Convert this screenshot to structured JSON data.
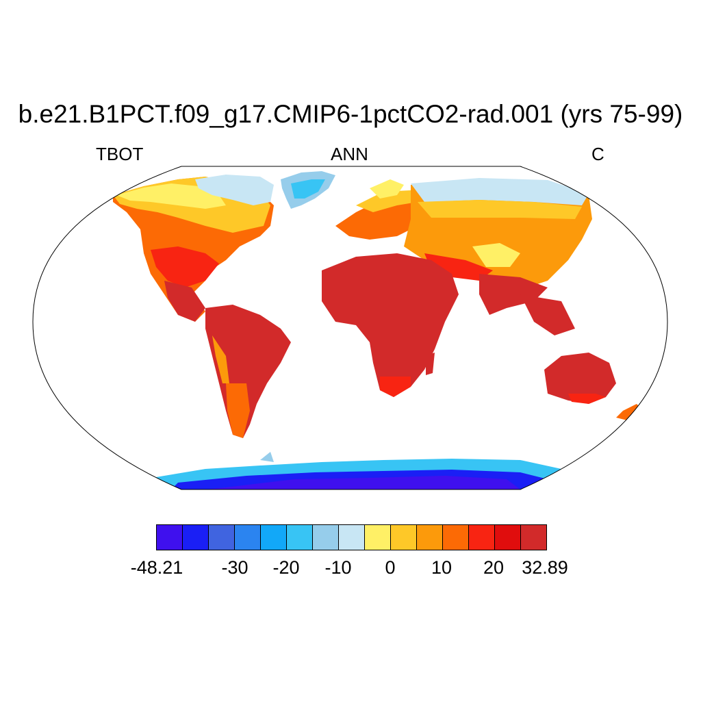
{
  "title": "b.e21.B1PCT.f09_g17.CMIP6-1pctCO2-rad.001 (yrs 75-99)",
  "left_label": "TBOT",
  "center_label": "ANN",
  "right_label": "C",
  "colorbar": {
    "colors": [
      "#3f10ee",
      "#1a1ff5",
      "#4064e0",
      "#2b84f0",
      "#12a8f8",
      "#38c4f4",
      "#96cdeb",
      "#c8e6f4",
      "#fff066",
      "#fec828",
      "#fc9a0b",
      "#fc6a05",
      "#f82412",
      "#e00d0d",
      "#d22a2a"
    ],
    "tick_labels": [
      "-48.21",
      "-30",
      "-20",
      "-10",
      "0",
      "10",
      "20",
      "32.89"
    ]
  }
}
